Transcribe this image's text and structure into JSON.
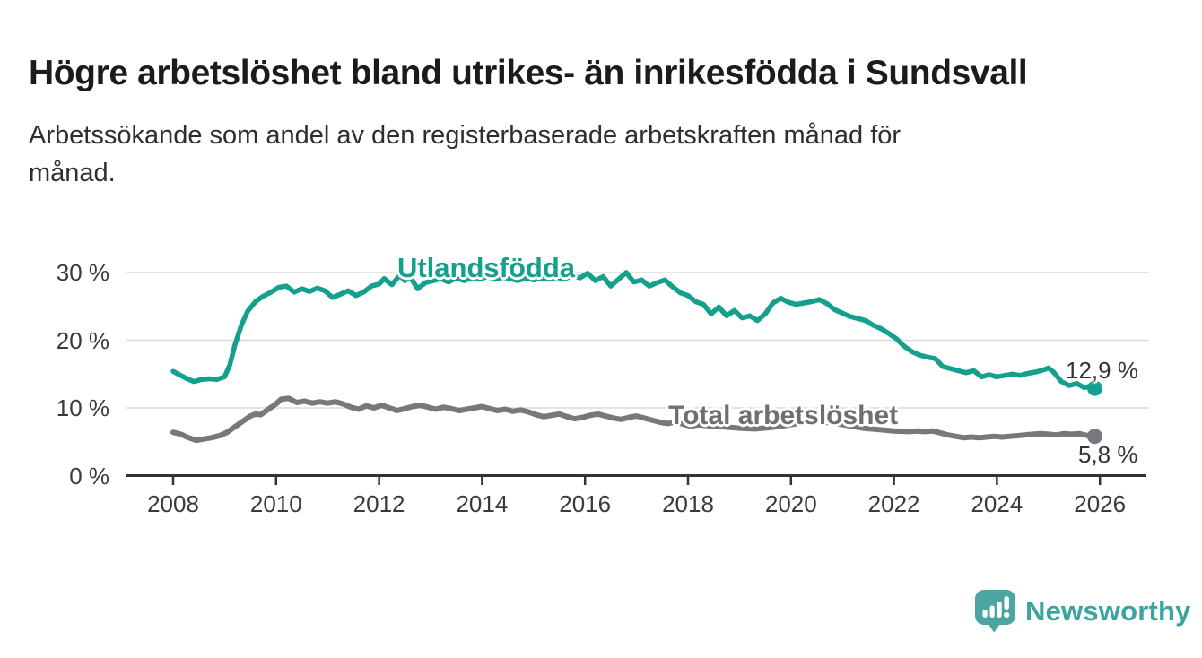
{
  "header": {
    "title": "Högre arbetslöshet bland utrikes- än inrikesfödda i Sundsvall",
    "subtitle": "Arbetssökande som andel av den registerbaserade arbetskraften månad för månad."
  },
  "footer": {
    "brand": "Newsworthy",
    "brand_color": "#3aa5a0",
    "logo_icon": "newsworthy-speech-bubble-bar-chart"
  },
  "colors": {
    "accent_teal": "#14a08c",
    "accent_gray": "#78787c",
    "grid": "#dcdcdc",
    "axis": "#333333",
    "text": "#2e2e2e"
  },
  "chart_data": {
    "type": "line",
    "title": "Högre arbetslöshet bland utrikes- än inrikesfödda i Sundsvall",
    "subtitle": "Arbetssökande som andel av den registerbaserade arbetskraften månad för månad.",
    "unit": "%",
    "grid": true,
    "legend_position": "inline-labels",
    "x_axis": {
      "tick_values": [
        2008,
        2010,
        2012,
        2014,
        2016,
        2018,
        2020,
        2022,
        2024,
        2026
      ],
      "range": [
        2007.1,
        2026.9
      ]
    },
    "y_axis": {
      "tick_values": [
        0,
        10,
        20,
        30
      ],
      "tick_suffix": " %",
      "range": [
        0,
        32
      ]
    },
    "series": [
      {
        "name": "Utlandsfödda",
        "color": "#14a08c",
        "line_width": 5.5,
        "end_label": "12,9 %",
        "end_value": 12.9,
        "points": [
          [
            2008.0,
            15.4
          ],
          [
            2008.1,
            15.0
          ],
          [
            2008.25,
            14.4
          ],
          [
            2008.4,
            13.9
          ],
          [
            2008.55,
            14.2
          ],
          [
            2008.7,
            14.3
          ],
          [
            2008.85,
            14.2
          ],
          [
            2009.0,
            14.6
          ],
          [
            2009.1,
            16.3
          ],
          [
            2009.2,
            19.3
          ],
          [
            2009.33,
            22.3
          ],
          [
            2009.45,
            24.3
          ],
          [
            2009.6,
            25.7
          ],
          [
            2009.75,
            26.5
          ],
          [
            2009.9,
            27.1
          ],
          [
            2010.05,
            27.8
          ],
          [
            2010.2,
            28.0
          ],
          [
            2010.35,
            27.1
          ],
          [
            2010.5,
            27.6
          ],
          [
            2010.65,
            27.2
          ],
          [
            2010.8,
            27.7
          ],
          [
            2010.95,
            27.3
          ],
          [
            2011.1,
            26.3
          ],
          [
            2011.25,
            26.8
          ],
          [
            2011.4,
            27.3
          ],
          [
            2011.55,
            26.6
          ],
          [
            2011.7,
            27.1
          ],
          [
            2011.85,
            28.0
          ],
          [
            2012.0,
            28.3
          ],
          [
            2012.1,
            29.1
          ],
          [
            2012.25,
            28.2
          ],
          [
            2012.4,
            29.6
          ],
          [
            2012.5,
            28.8
          ],
          [
            2012.6,
            29.4
          ],
          [
            2012.75,
            27.6
          ],
          [
            2012.9,
            28.5
          ],
          [
            2013.05,
            28.8
          ],
          [
            2013.2,
            29.1
          ],
          [
            2013.35,
            28.6
          ],
          [
            2013.5,
            29.2
          ],
          [
            2013.65,
            28.8
          ],
          [
            2013.8,
            29.2
          ],
          [
            2013.95,
            29.0
          ],
          [
            2014.1,
            29.4
          ],
          [
            2014.25,
            29.0
          ],
          [
            2014.4,
            29.3
          ],
          [
            2014.55,
            29.1
          ],
          [
            2014.7,
            28.8
          ],
          [
            2014.85,
            29.2
          ],
          [
            2015.0,
            28.9
          ],
          [
            2015.15,
            29.2
          ],
          [
            2015.3,
            29.0
          ],
          [
            2015.45,
            29.3
          ],
          [
            2015.6,
            29.0
          ],
          [
            2015.75,
            29.6
          ],
          [
            2015.9,
            29.2
          ],
          [
            2016.05,
            29.9
          ],
          [
            2016.2,
            28.8
          ],
          [
            2016.35,
            29.4
          ],
          [
            2016.5,
            28.0
          ],
          [
            2016.65,
            29.0
          ],
          [
            2016.8,
            30.0
          ],
          [
            2016.95,
            28.6
          ],
          [
            2017.1,
            28.9
          ],
          [
            2017.25,
            28.0
          ],
          [
            2017.4,
            28.5
          ],
          [
            2017.55,
            28.9
          ],
          [
            2017.7,
            27.9
          ],
          [
            2017.85,
            27.0
          ],
          [
            2018.0,
            26.6
          ],
          [
            2018.15,
            25.7
          ],
          [
            2018.3,
            25.3
          ],
          [
            2018.45,
            23.9
          ],
          [
            2018.6,
            24.9
          ],
          [
            2018.75,
            23.6
          ],
          [
            2018.9,
            24.4
          ],
          [
            2019.05,
            23.3
          ],
          [
            2019.2,
            23.6
          ],
          [
            2019.35,
            22.9
          ],
          [
            2019.5,
            23.9
          ],
          [
            2019.65,
            25.5
          ],
          [
            2019.8,
            26.2
          ],
          [
            2019.95,
            25.6
          ],
          [
            2020.1,
            25.3
          ],
          [
            2020.25,
            25.5
          ],
          [
            2020.4,
            25.7
          ],
          [
            2020.55,
            26.0
          ],
          [
            2020.7,
            25.4
          ],
          [
            2020.85,
            24.5
          ],
          [
            2021.0,
            24.0
          ],
          [
            2021.15,
            23.5
          ],
          [
            2021.3,
            23.2
          ],
          [
            2021.45,
            22.9
          ],
          [
            2021.6,
            22.2
          ],
          [
            2021.75,
            21.7
          ],
          [
            2021.9,
            21.0
          ],
          [
            2022.05,
            20.2
          ],
          [
            2022.2,
            19.1
          ],
          [
            2022.35,
            18.3
          ],
          [
            2022.5,
            17.8
          ],
          [
            2022.65,
            17.5
          ],
          [
            2022.8,
            17.3
          ],
          [
            2022.95,
            16.1
          ],
          [
            2023.1,
            15.8
          ],
          [
            2023.25,
            15.5
          ],
          [
            2023.4,
            15.2
          ],
          [
            2023.55,
            15.5
          ],
          [
            2023.7,
            14.6
          ],
          [
            2023.85,
            14.9
          ],
          [
            2024.0,
            14.6
          ],
          [
            2024.15,
            14.8
          ],
          [
            2024.3,
            15.0
          ],
          [
            2024.45,
            14.8
          ],
          [
            2024.6,
            15.1
          ],
          [
            2024.75,
            15.3
          ],
          [
            2024.9,
            15.6
          ],
          [
            2025.0,
            15.9
          ],
          [
            2025.1,
            15.3
          ],
          [
            2025.25,
            13.9
          ],
          [
            2025.4,
            13.3
          ],
          [
            2025.55,
            13.6
          ],
          [
            2025.7,
            13.0
          ],
          [
            2025.8,
            13.2
          ],
          [
            2025.9,
            12.9
          ]
        ]
      },
      {
        "name": "Total arbetslöshet",
        "color": "#78787c",
        "line_width": 6,
        "end_label": "5,8 %",
        "end_value": 5.8,
        "points": [
          [
            2008.0,
            6.4
          ],
          [
            2008.15,
            6.1
          ],
          [
            2008.3,
            5.6
          ],
          [
            2008.45,
            5.2
          ],
          [
            2008.6,
            5.4
          ],
          [
            2008.75,
            5.6
          ],
          [
            2008.9,
            5.9
          ],
          [
            2009.05,
            6.4
          ],
          [
            2009.2,
            7.2
          ],
          [
            2009.35,
            8.0
          ],
          [
            2009.5,
            8.8
          ],
          [
            2009.6,
            9.1
          ],
          [
            2009.7,
            9.0
          ],
          [
            2009.85,
            9.8
          ],
          [
            2010.0,
            10.6
          ],
          [
            2010.1,
            11.3
          ],
          [
            2010.25,
            11.4
          ],
          [
            2010.4,
            10.8
          ],
          [
            2010.55,
            11.0
          ],
          [
            2010.7,
            10.7
          ],
          [
            2010.85,
            10.9
          ],
          [
            2011.0,
            10.7
          ],
          [
            2011.15,
            10.9
          ],
          [
            2011.3,
            10.6
          ],
          [
            2011.45,
            10.1
          ],
          [
            2011.6,
            9.8
          ],
          [
            2011.75,
            10.3
          ],
          [
            2011.9,
            10.0
          ],
          [
            2012.05,
            10.4
          ],
          [
            2012.2,
            10.0
          ],
          [
            2012.35,
            9.6
          ],
          [
            2012.5,
            9.9
          ],
          [
            2012.65,
            10.2
          ],
          [
            2012.8,
            10.4
          ],
          [
            2012.95,
            10.1
          ],
          [
            2013.1,
            9.8
          ],
          [
            2013.25,
            10.1
          ],
          [
            2013.4,
            9.9
          ],
          [
            2013.55,
            9.6
          ],
          [
            2013.7,
            9.8
          ],
          [
            2013.85,
            10.0
          ],
          [
            2014.0,
            10.2
          ],
          [
            2014.15,
            9.9
          ],
          [
            2014.3,
            9.6
          ],
          [
            2014.45,
            9.8
          ],
          [
            2014.6,
            9.5
          ],
          [
            2014.75,
            9.7
          ],
          [
            2014.9,
            9.4
          ],
          [
            2015.05,
            9.0
          ],
          [
            2015.2,
            8.7
          ],
          [
            2015.35,
            8.9
          ],
          [
            2015.5,
            9.1
          ],
          [
            2015.65,
            8.7
          ],
          [
            2015.8,
            8.4
          ],
          [
            2015.95,
            8.6
          ],
          [
            2016.1,
            8.9
          ],
          [
            2016.25,
            9.1
          ],
          [
            2016.4,
            8.8
          ],
          [
            2016.55,
            8.5
          ],
          [
            2016.7,
            8.3
          ],
          [
            2016.85,
            8.6
          ],
          [
            2017.0,
            8.8
          ],
          [
            2017.15,
            8.5
          ],
          [
            2017.3,
            8.2
          ],
          [
            2017.45,
            7.9
          ],
          [
            2017.6,
            7.7
          ],
          [
            2017.75,
            7.9
          ],
          [
            2017.9,
            7.6
          ],
          [
            2018.05,
            7.3
          ],
          [
            2018.2,
            7.5
          ],
          [
            2018.35,
            7.4
          ],
          [
            2018.5,
            7.3
          ],
          [
            2018.7,
            7.2
          ],
          [
            2019.0,
            7.0
          ],
          [
            2019.3,
            6.9
          ],
          [
            2019.6,
            7.1
          ],
          [
            2019.9,
            7.4
          ],
          [
            2020.2,
            7.8
          ],
          [
            2020.5,
            8.0
          ],
          [
            2020.8,
            7.8
          ],
          [
            2021.1,
            7.4
          ],
          [
            2021.4,
            7.0
          ],
          [
            2021.7,
            6.8
          ],
          [
            2022.0,
            6.6
          ],
          [
            2022.3,
            6.5
          ],
          [
            2022.45,
            6.6
          ],
          [
            2022.6,
            6.5
          ],
          [
            2022.75,
            6.6
          ],
          [
            2022.9,
            6.3
          ],
          [
            2023.05,
            6.0
          ],
          [
            2023.2,
            5.8
          ],
          [
            2023.35,
            5.6
          ],
          [
            2023.5,
            5.7
          ],
          [
            2023.65,
            5.6
          ],
          [
            2023.8,
            5.7
          ],
          [
            2023.95,
            5.8
          ],
          [
            2024.1,
            5.7
          ],
          [
            2024.25,
            5.8
          ],
          [
            2024.4,
            5.9
          ],
          [
            2024.55,
            6.0
          ],
          [
            2024.7,
            6.1
          ],
          [
            2024.85,
            6.2
          ],
          [
            2025.0,
            6.1
          ],
          [
            2025.15,
            6.0
          ],
          [
            2025.3,
            6.2
          ],
          [
            2025.45,
            6.1
          ],
          [
            2025.6,
            6.2
          ],
          [
            2025.7,
            6.0
          ],
          [
            2025.85,
            5.8
          ],
          [
            2025.9,
            5.8
          ]
        ]
      }
    ]
  }
}
